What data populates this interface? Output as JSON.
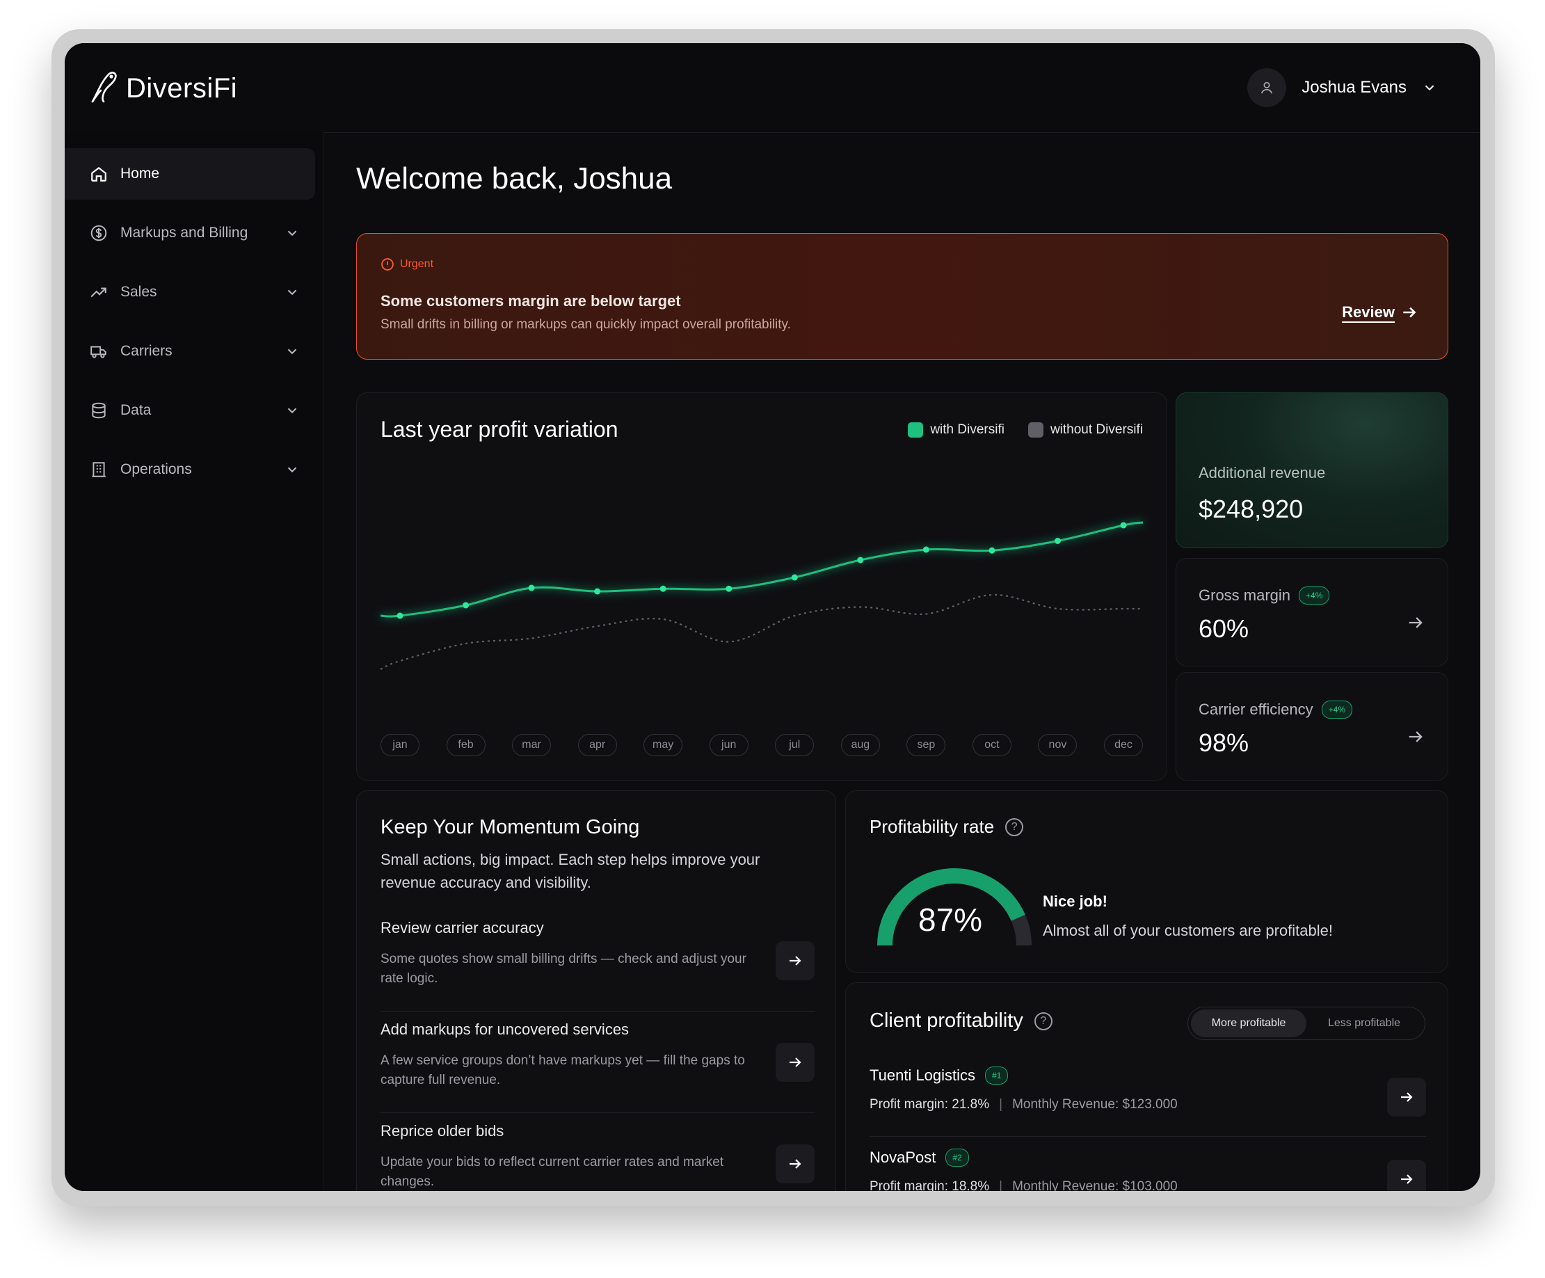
{
  "app": {
    "brand": "DiversiFi"
  },
  "header": {
    "user_name": "Joshua Evans"
  },
  "sidebar": {
    "items": [
      {
        "label": "Home",
        "icon": "home-icon",
        "active": true
      },
      {
        "label": "Markups and Billing",
        "icon": "dollar-circle-icon"
      },
      {
        "label": "Sales",
        "icon": "trend-up-icon"
      },
      {
        "label": "Carriers",
        "icon": "truck-icon"
      },
      {
        "label": "Data",
        "icon": "database-icon"
      },
      {
        "label": "Operations",
        "icon": "building-icon"
      }
    ]
  },
  "main": {
    "welcome": "Welcome back, Joshua",
    "alert": {
      "tag": "Urgent",
      "title": "Some customers margin are below target",
      "subtitle": "Small drifts in billing or markups can quickly impact overall profitability.",
      "action": "Review"
    }
  },
  "chart_data": {
    "type": "line",
    "title": "Last year profit variation",
    "categories": [
      "jan",
      "feb",
      "mar",
      "apr",
      "may",
      "jun",
      "jul",
      "aug",
      "sep",
      "oct",
      "nov",
      "dec"
    ],
    "series": [
      {
        "name": "with Diversifi",
        "color": "#1fbf7f",
        "style": "solid",
        "values": [
          10,
          16,
          26,
          24,
          25.5,
          25.5,
          32,
          42,
          48,
          47.5,
          53,
          62
        ]
      },
      {
        "name": "without Diversifi",
        "color": "#5f5f66",
        "style": "dotted",
        "values": [
          -16,
          -6,
          -3,
          4,
          8,
          -5,
          10,
          15,
          11,
          22,
          14,
          14
        ]
      }
    ],
    "ylim": [
      -22,
      78
    ],
    "legend": "top-right",
    "grid": false
  },
  "stats": {
    "additional_revenue": {
      "label": "Additional revenue",
      "value": "$248,920"
    },
    "gross_margin": {
      "label": "Gross margin",
      "badge": "+4%",
      "value": "60%"
    },
    "carrier_efficiency": {
      "label": "Carrier efficiency",
      "badge": "+4%",
      "value": "98%"
    }
  },
  "momentum": {
    "title": "Keep Your Momentum Going",
    "subtitle": "Small actions, big impact. Each step helps improve your revenue accuracy and visibility.",
    "tasks": [
      {
        "title": "Review carrier accuracy",
        "desc": "Some quotes show small billing drifts — check and adjust your rate logic."
      },
      {
        "title": "Add markups for uncovered services",
        "desc": "A few service groups don’t have markups yet — fill the gaps to capture full revenue."
      },
      {
        "title": "Reprice older bids",
        "desc": "Update your bids to reflect current carrier rates and market changes."
      }
    ]
  },
  "profitability": {
    "title": "Profitability rate",
    "value": "87%",
    "value_fraction": 0.87,
    "headline": "Nice job!",
    "message": "Almost all of your customers are profitable!",
    "accent": "#17a06c"
  },
  "clients": {
    "title": "Client profitability",
    "toggle": [
      "More profitable",
      "Less profitable"
    ],
    "rows": [
      {
        "name": "Tuenti Logistics",
        "rank": "#1",
        "margin": "Profit margin: 21.8%",
        "revenue": "Monthly Revenue: $123.000"
      },
      {
        "name": "NovaPost",
        "rank": "#2",
        "margin": "Profit margin: 18.8%",
        "revenue": "Monthly Revenue: $103.000"
      }
    ]
  }
}
